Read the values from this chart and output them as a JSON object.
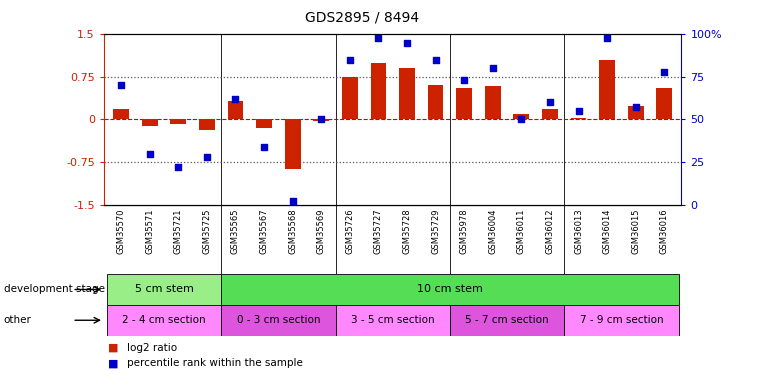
{
  "title": "GDS2895 / 8494",
  "samples": [
    "GSM35570",
    "GSM35571",
    "GSM35721",
    "GSM35725",
    "GSM35565",
    "GSM35567",
    "GSM35568",
    "GSM35569",
    "GSM35726",
    "GSM35727",
    "GSM35728",
    "GSM35729",
    "GSM35978",
    "GSM36004",
    "GSM36011",
    "GSM36012",
    "GSM36013",
    "GSM36014",
    "GSM36015",
    "GSM36016"
  ],
  "log2_ratio": [
    0.18,
    -0.12,
    -0.08,
    -0.18,
    0.33,
    -0.15,
    -0.87,
    -0.03,
    0.75,
    1.0,
    0.9,
    0.6,
    0.55,
    0.58,
    0.1,
    0.18,
    0.02,
    1.05,
    0.23,
    0.55
  ],
  "percentile": [
    70,
    30,
    22,
    28,
    62,
    34,
    2,
    50,
    85,
    98,
    95,
    85,
    73,
    80,
    50,
    60,
    55,
    98,
    57,
    78
  ],
  "dev_stage_groups": [
    {
      "label": "5 cm stem",
      "start": 0,
      "end": 4,
      "color": "#99EE88"
    },
    {
      "label": "10 cm stem",
      "start": 4,
      "end": 20,
      "color": "#55DD55"
    }
  ],
  "other_groups": [
    {
      "label": "2 - 4 cm section",
      "start": 0,
      "end": 4,
      "color": "#FF88FF"
    },
    {
      "label": "0 - 3 cm section",
      "start": 4,
      "end": 8,
      "color": "#DD55DD"
    },
    {
      "label": "3 - 5 cm section",
      "start": 8,
      "end": 12,
      "color": "#FF88FF"
    },
    {
      "label": "5 - 7 cm section",
      "start": 12,
      "end": 16,
      "color": "#DD55DD"
    },
    {
      "label": "7 - 9 cm section",
      "start": 16,
      "end": 20,
      "color": "#FF88FF"
    }
  ],
  "ylim": [
    -1.5,
    1.5
  ],
  "right_ylim": [
    0,
    100
  ],
  "bar_color": "#CC2200",
  "dot_color": "#0000CC",
  "hline_color": "#CC0000",
  "bg_color": "#ffffff",
  "xtick_bg": "#CCCCCC",
  "legend_bar_label": "log2 ratio",
  "legend_dot_label": "percentile rank within the sample",
  "dev_row_label": "development stage",
  "other_row_label": "other",
  "group_sep_indices": [
    4,
    8,
    12,
    16
  ]
}
